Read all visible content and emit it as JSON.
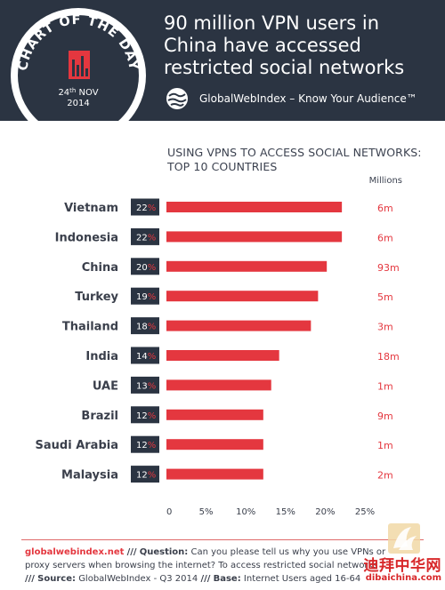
{
  "header": {
    "headline": "90 million VPN users in China have accessed restricted social networks",
    "badge_title": "CHART OF THE DAY",
    "badge_date_day": "24",
    "badge_date_suffix": "th",
    "badge_date_month": "NOV",
    "badge_year": "2014",
    "brand": "GlobalWebIndex – Know Your Audience™"
  },
  "chart_data": {
    "type": "bar",
    "orientation": "horizontal",
    "title": "USING VPNS TO ACCESS SOCIAL NETWORKS: TOP 10 COUNTRIES",
    "units_label": "Millions",
    "categories": [
      "Vietnam",
      "Indonesia",
      "China",
      "Turkey",
      "Thailand",
      "India",
      "UAE",
      "Brazil",
      "Saudi Arabia",
      "Malaysia"
    ],
    "values": [
      22,
      22,
      20,
      19,
      18,
      14,
      13,
      12,
      12,
      12
    ],
    "bar_values": [
      22.1,
      22.1,
      20.2,
      19.1,
      18.2,
      14.2,
      13.2,
      12.2,
      12.2,
      12.2
    ],
    "value_suffix": "%",
    "millions": [
      "6m",
      "6m",
      "93m",
      "5m",
      "3m",
      "18m",
      "1m",
      "9m",
      "1m",
      "2m"
    ],
    "xticks": [
      "0",
      "5%",
      "10%",
      "15%",
      "20%",
      "25%"
    ],
    "xlim": [
      0,
      25
    ],
    "grid": false,
    "colors": {
      "bar": "#e4373f",
      "label_box": "#2b3442",
      "percent_sign": "#e4373f",
      "millions": "#e4373f"
    }
  },
  "footer": {
    "source_name": "globalwebindex.net",
    "q_label": "Question:",
    "question": "Can you please tell us why you use VPNs or proxy servers when browsing the internet? To access restricted social networks",
    "source_label": "Source:",
    "source": "GlobalWebIndex",
    "source_period": "- Q3 2014",
    "base_label": "Base:",
    "base": "Internet Users aged 16-64"
  },
  "watermark": {
    "text": "迪拜中华网",
    "url": "dibaichina.com"
  },
  "colors": {
    "header_bg": "#2b3442",
    "accent": "#e4373f",
    "footer_rule": "#e06a6a"
  }
}
